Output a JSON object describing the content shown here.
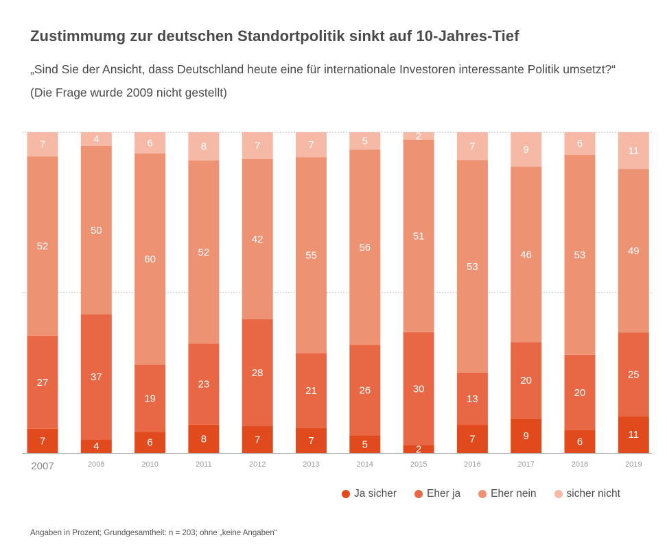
{
  "title": "Zustimmumg zur deutschen Standortpolitik sinkt auf 10-Jahres-Tief",
  "subtitle": "„Sind Sie der Ansicht, dass Deutschland heute eine für internationale Investoren interessante Politik umsetzt?“ (Die Frage wurde 2009 nicht gestellt)",
  "footnote": "Angaben in Prozent; Grundgesamtheit: n = 203; ohne „keine Angaben“",
  "colors": {
    "ja_sicher": "#e04a1c",
    "eher_ja": "#e86845",
    "eher_nein": "#ee9274",
    "sicher_nicht": "#f5b9a5",
    "gridline": "#bbbbbb"
  },
  "legend": [
    {
      "label": "Ja sicher",
      "color_key": "ja_sicher"
    },
    {
      "label": "Eher ja",
      "color_key": "eher_ja"
    },
    {
      "label": "Eher nein",
      "color_key": "eher_nein"
    },
    {
      "label": "sicher nicht",
      "color_key": "sicher_nicht"
    }
  ],
  "chart_data": {
    "type": "bar",
    "stacked": true,
    "categories": [
      "2007",
      "2008",
      "2010",
      "2011",
      "2012",
      "2013",
      "2014",
      "2015",
      "2016",
      "2017",
      "2018",
      "2019"
    ],
    "series": [
      {
        "name": "Ja sicher",
        "color_key": "ja_sicher",
        "values": [
          7,
          4,
          6,
          8,
          7,
          7,
          5,
          2,
          7,
          9,
          6,
          11
        ]
      },
      {
        "name": "Eher ja",
        "color_key": "eher_ja",
        "values": [
          27,
          37,
          19,
          23,
          28,
          21,
          26,
          30,
          13,
          20,
          20,
          25
        ]
      },
      {
        "name": "Eher nein",
        "color_key": "eher_nein",
        "values": [
          52,
          50,
          60,
          52,
          42,
          55,
          56,
          51,
          53,
          46,
          53,
          49
        ]
      },
      {
        "name": "sicher nicht",
        "color_key": "sicher_nicht",
        "values": [
          7,
          4,
          6,
          8,
          7,
          7,
          5,
          2,
          7,
          9,
          6,
          11
        ]
      }
    ],
    "legend_position": "bottom-right",
    "grid": true
  }
}
